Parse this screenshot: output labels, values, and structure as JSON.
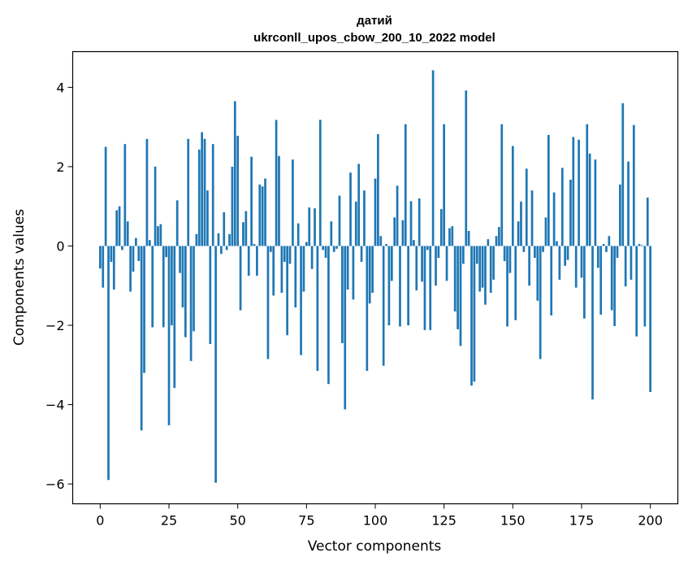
{
  "chart_data": {
    "type": "bar",
    "title_line1": "датий",
    "title_line2": "ukrconll_upos_cbow_200_10_2022 model",
    "xlabel": "Vector components",
    "ylabel": "Components values",
    "xlim": [
      -10,
      210
    ],
    "ylim": [
      -6.5,
      4.9
    ],
    "xticks": [
      0,
      25,
      50,
      75,
      100,
      125,
      150,
      175,
      200
    ],
    "yticks": [
      -6,
      -4,
      -2,
      0,
      2,
      4
    ],
    "bar_color": "#1f77b4",
    "values": [
      -0.57,
      -1.05,
      2.5,
      -5.9,
      -0.4,
      -1.1,
      0.9,
      1.0,
      -0.1,
      2.57,
      0.62,
      -1.15,
      -0.65,
      0.2,
      -0.38,
      -4.65,
      -3.2,
      2.7,
      0.15,
      -2.05,
      2.0,
      0.5,
      0.55,
      -2.05,
      -0.28,
      -4.52,
      -2.0,
      -3.58,
      1.15,
      -0.68,
      -1.55,
      -2.3,
      2.7,
      -2.9,
      -2.15,
      0.3,
      2.43,
      2.87,
      2.7,
      1.4,
      -2.47,
      2.57,
      -5.97,
      0.32,
      -0.2,
      0.85,
      -0.1,
      0.3,
      2.0,
      3.65,
      2.78,
      -1.62,
      0.6,
      0.88,
      -0.75,
      2.25,
      0.05,
      -0.75,
      1.55,
      1.5,
      1.7,
      -2.85,
      -0.15,
      -1.25,
      3.18,
      2.27,
      -1.18,
      -0.4,
      -2.25,
      -0.45,
      2.18,
      -1.55,
      0.57,
      -2.75,
      -1.15,
      0.1,
      0.97,
      -0.58,
      0.95,
      -3.15,
      3.18,
      -0.1,
      -0.3,
      -3.48,
      0.62,
      -0.15,
      -0.07,
      1.27,
      -2.45,
      -4.12,
      -1.1,
      1.85,
      -1.35,
      1.12,
      2.07,
      -0.4,
      1.4,
      -3.15,
      -1.45,
      -1.18,
      1.7,
      2.82,
      0.25,
      -3.02,
      0.05,
      -2.0,
      -0.88,
      0.72,
      1.52,
      -2.03,
      0.65,
      3.07,
      -2.0,
      1.13,
      0.15,
      -1.12,
      1.2,
      -0.9,
      -2.12,
      -0.1,
      -2.12,
      4.43,
      -1.0,
      -0.3,
      0.93,
      3.07,
      -0.88,
      0.45,
      0.5,
      -1.65,
      -2.1,
      -2.52,
      -0.45,
      3.92,
      0.38,
      -3.52,
      -3.42,
      -0.45,
      -1.15,
      -1.05,
      -1.48,
      0.17,
      -1.18,
      -0.85,
      0.25,
      0.48,
      3.07,
      -0.38,
      -2.03,
      -0.68,
      2.52,
      -1.87,
      0.62,
      1.12,
      -0.15,
      1.95,
      -1.0,
      1.4,
      -0.3,
      -1.38,
      -2.85,
      -0.15,
      0.72,
      2.8,
      -1.75,
      1.35,
      0.12,
      -0.85,
      1.97,
      -0.5,
      -0.35,
      1.67,
      2.75,
      -1.05,
      2.68,
      -0.8,
      -1.83,
      3.07,
      2.33,
      -3.87,
      2.18,
      -0.55,
      -1.73,
      0.05,
      -0.15,
      0.25,
      -1.62,
      -2.02,
      -0.3,
      1.55,
      3.6,
      -1.02,
      2.13,
      -0.85,
      3.05,
      -2.28,
      0.05,
      0.02,
      -2.03,
      1.22,
      -3.68
    ]
  }
}
